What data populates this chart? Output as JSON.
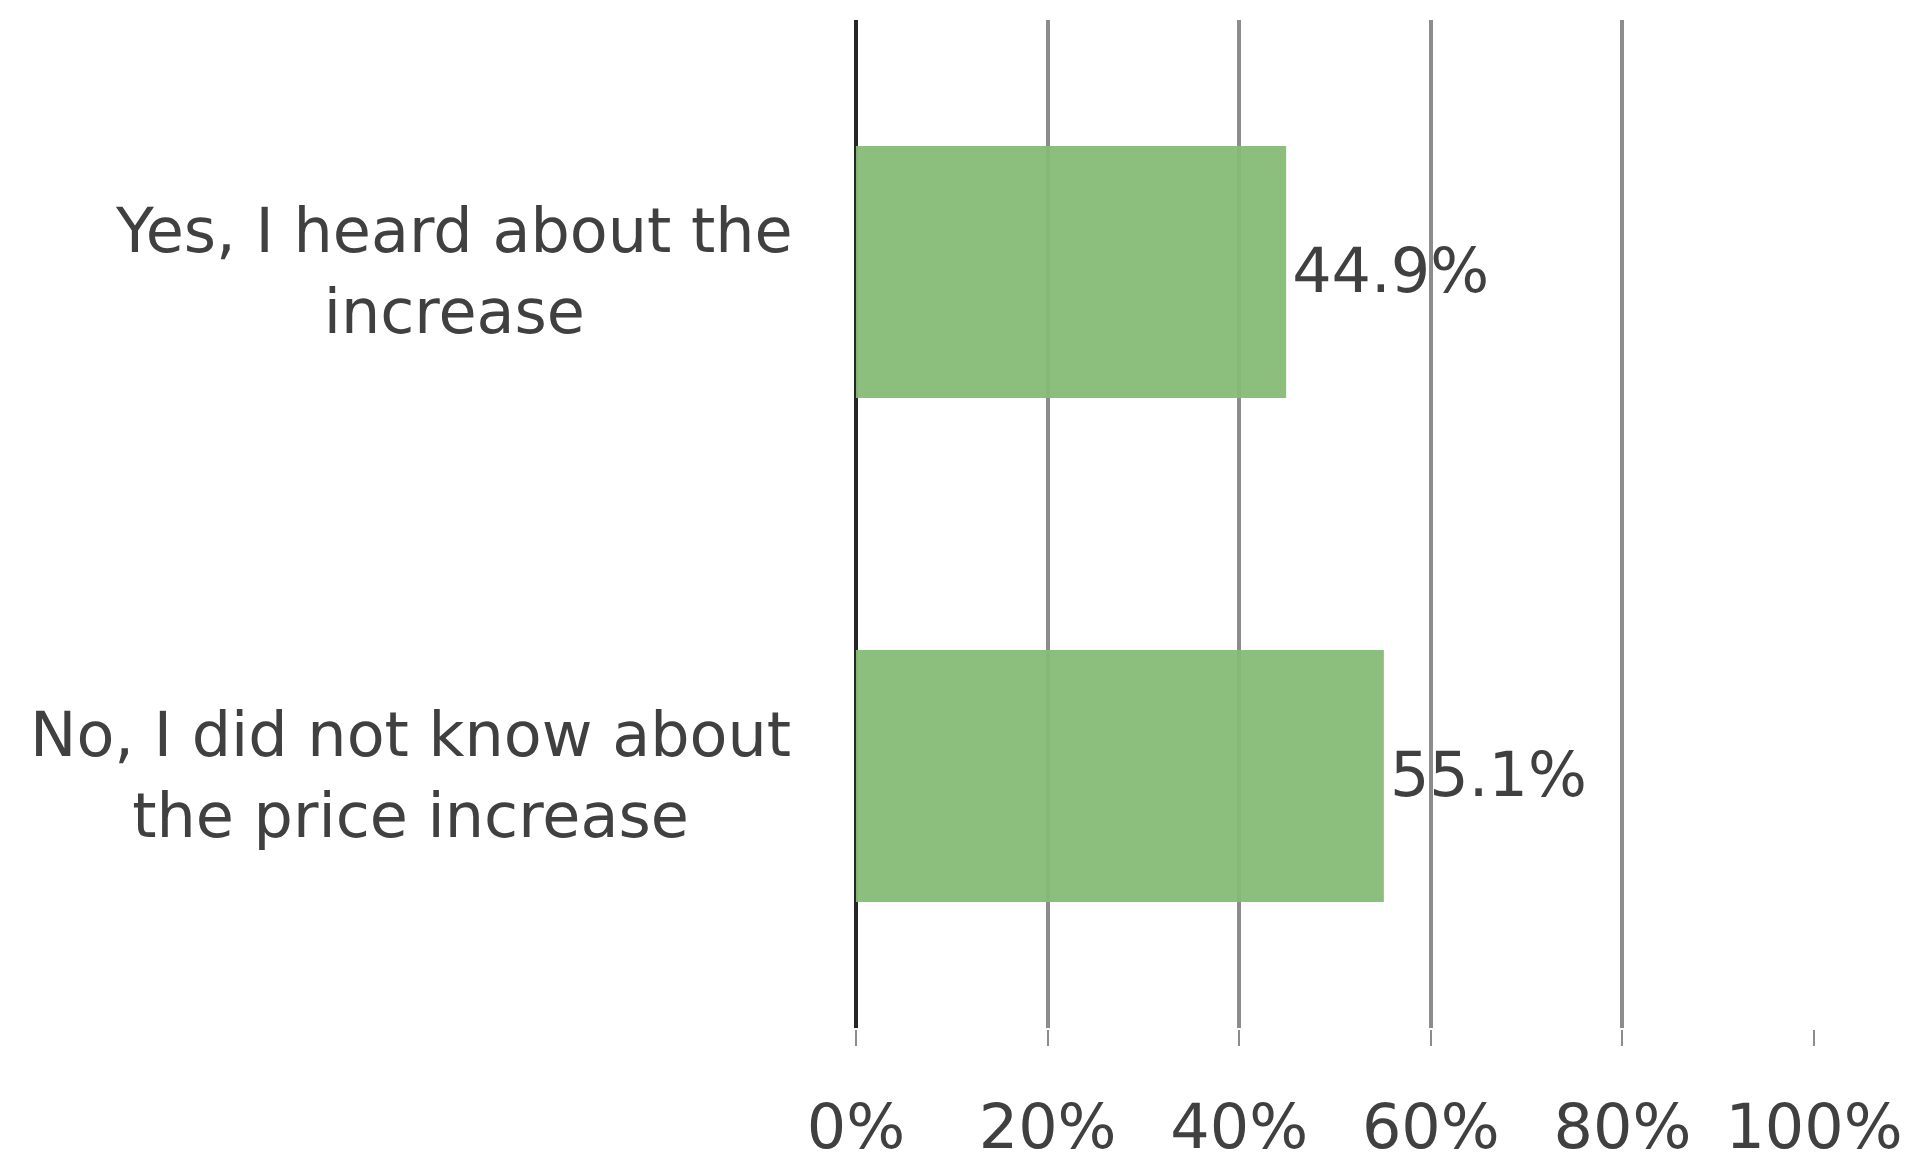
{
  "chart_data": {
    "type": "bar",
    "orientation": "horizontal",
    "categories": [
      "Yes, I heard about the increase",
      "No, I did not know about the price increase"
    ],
    "values": [
      44.9,
      55.1
    ],
    "value_labels": [
      "44.9%",
      "55.1%"
    ],
    "color": "#86bc76",
    "xlim": [
      0,
      100
    ],
    "xticks": [
      {
        "value": 0,
        "label": "0%"
      },
      {
        "value": 20,
        "label": "20%"
      },
      {
        "value": 40,
        "label": "40%"
      },
      {
        "value": 60,
        "label": "60%"
      },
      {
        "value": 80,
        "label": "80%"
      },
      {
        "value": 100,
        "label": "100%"
      }
    ],
    "grid": "x"
  }
}
